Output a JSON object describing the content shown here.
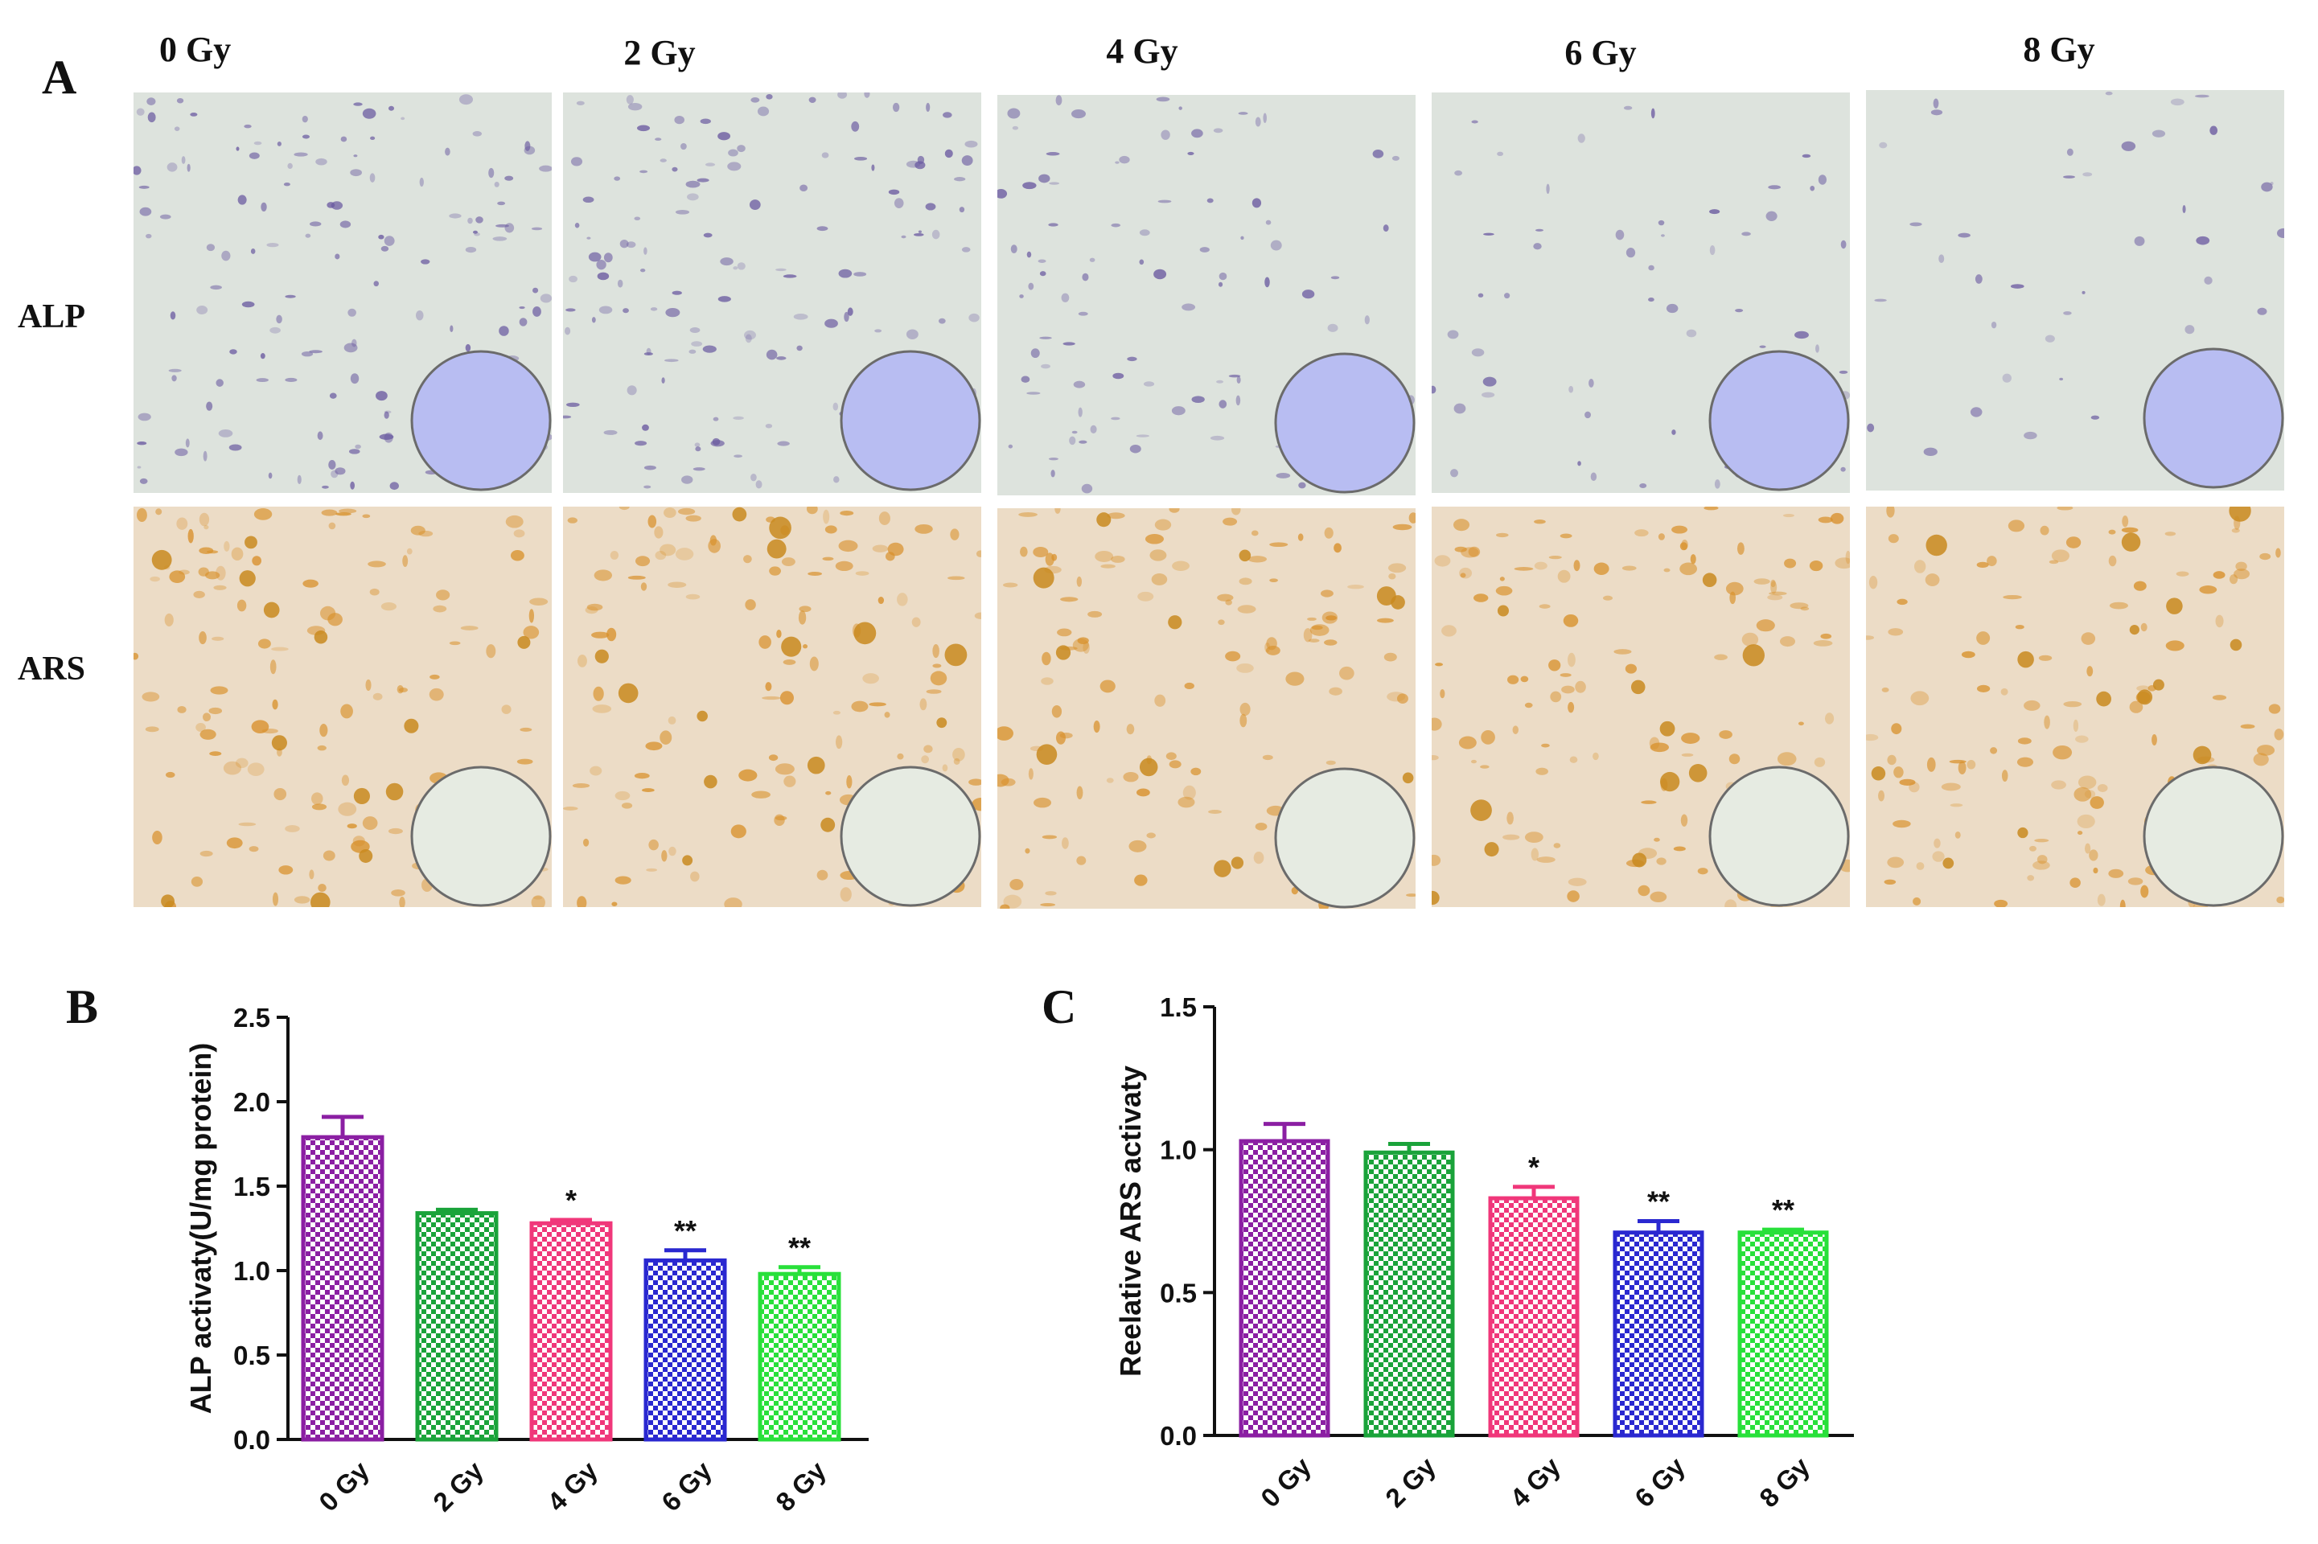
{
  "figure": {
    "panel_a_label": "A",
    "panel_b_label": "B",
    "panel_c_label": "C",
    "column_labels": [
      "0 Gy",
      "2 Gy",
      "4 Gy",
      "6 Gy",
      "8 Gy"
    ],
    "row_labels": [
      "ALP",
      "ARS"
    ],
    "alp_stain_color": "#6a5aa0",
    "alp_background_color": "#dde3dd",
    "alp_well_color": "#b8bdf2",
    "ars_stain_color": "#d8902a",
    "ars_background_color": "#ecdcc6",
    "ars_well_color": "#e6ebe2"
  },
  "chart_data": [
    {
      "type": "bar",
      "title": "",
      "xlabel": "",
      "ylabel": "ALP activaty(U/mg protein)",
      "categories": [
        "0 Gy",
        "2 Gy",
        "4 Gy",
        "6 Gy",
        "8 Gy"
      ],
      "values": [
        1.79,
        1.34,
        1.28,
        1.06,
        0.98
      ],
      "errors": [
        0.12,
        0.02,
        0.02,
        0.06,
        0.04
      ],
      "significance": [
        "",
        "",
        "*",
        "**",
        "**"
      ],
      "ylim": [
        0.0,
        2.5
      ],
      "yticks": [
        "0.0",
        "0.5",
        "1.0",
        "1.5",
        "2.0",
        "2.5"
      ],
      "bar_colors": [
        "#8b1fa3",
        "#1aa33a",
        "#f0377a",
        "#2a28d0",
        "#28e03a"
      ],
      "pattern": "checkered",
      "grid": false,
      "legend": "none"
    },
    {
      "type": "bar",
      "title": "",
      "xlabel": "",
      "ylabel": "Reelative ARS activaty",
      "categories": [
        "0 Gy",
        "2 Gy",
        "4 Gy",
        "6 Gy",
        "8 Gy"
      ],
      "values": [
        1.03,
        0.99,
        0.83,
        0.71,
        0.71
      ],
      "errors": [
        0.06,
        0.03,
        0.04,
        0.04,
        0.01
      ],
      "significance": [
        "",
        "",
        "*",
        "**",
        "**"
      ],
      "ylim": [
        0.0,
        1.5
      ],
      "yticks": [
        "0.0",
        "0.5",
        "1.0",
        "1.5"
      ],
      "bar_colors": [
        "#8b1fa3",
        "#1aa33a",
        "#f0377a",
        "#2a28d0",
        "#28e03a"
      ],
      "pattern": "checkered",
      "grid": false,
      "legend": "none"
    }
  ]
}
